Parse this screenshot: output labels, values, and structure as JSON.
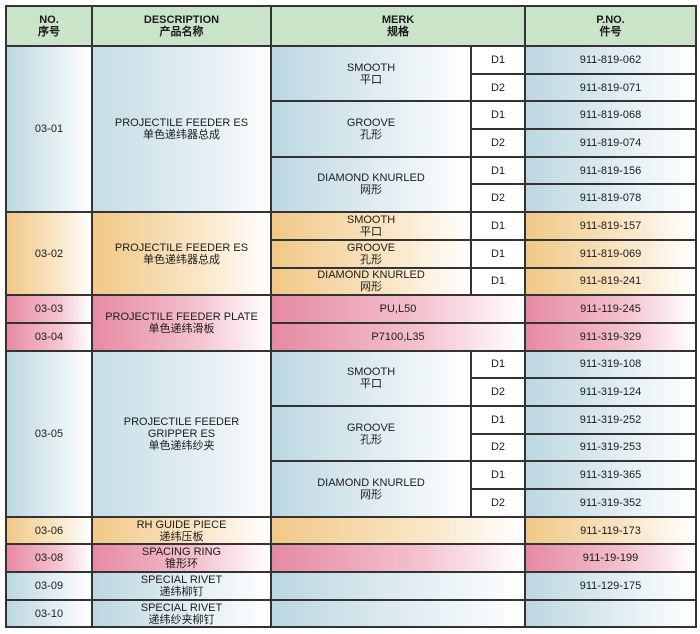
{
  "header": {
    "no": "NO.",
    "no_cn": "序号",
    "desc": "DESCRIPTION",
    "desc_cn": "产品名称",
    "merk": "MERK",
    "merk_cn": "规格",
    "pno": "P.NO.",
    "pno_cn": "件号"
  },
  "g1": {
    "no": "03-01",
    "desc": "PROJECTILE FEEDER ES",
    "desc_cn": "单色递纬器总成",
    "m": [
      {
        "en": "SMOOTH",
        "cn": "平口",
        "d": [
          "D1",
          "D2"
        ],
        "p": [
          "911-819-062",
          "911-819-071"
        ]
      },
      {
        "en": "GROOVE",
        "cn": "孔形",
        "d": [
          "D1",
          "D2"
        ],
        "p": [
          "911-819-068",
          "911-819-074"
        ]
      },
      {
        "en": "DIAMOND KNURLED",
        "cn": "网形",
        "d": [
          "D1",
          "D2"
        ],
        "p": [
          "911-819-156",
          "911-819-078"
        ]
      }
    ]
  },
  "g2": {
    "no": "03-02",
    "desc": "PROJECTILE FEEDER ES",
    "desc_cn": "单色递纬器总成",
    "m": [
      {
        "en": "SMOOTH",
        "cn": "平口",
        "d": "D1",
        "p": "911-819-157"
      },
      {
        "en": "GROOVE",
        "cn": "孔形",
        "d": "D1",
        "p": "911-819-069"
      },
      {
        "en": "DIAMOND KNURLED",
        "cn": "网形",
        "d": "D1",
        "p": "911-819-241"
      }
    ]
  },
  "g3": {
    "desc": "PROJECTILE FEEDER PLATE",
    "desc_cn": "单色递纬滑板",
    "r": [
      {
        "no": "03-03",
        "m": "PU,L50",
        "p": "911-119-245"
      },
      {
        "no": "03-04",
        "m": "P7100,L35",
        "p": "911-319-329"
      }
    ]
  },
  "g4": {
    "no": "03-05",
    "desc1": "PROJECTILE FEEDER",
    "desc2": "GRIPPER ES",
    "desc_cn": "单色递纬纱夹",
    "m": [
      {
        "en": "SMOOTH",
        "cn": "平口",
        "d": [
          "D1",
          "D2"
        ],
        "p": [
          "911-319-108",
          "911-319-124"
        ]
      },
      {
        "en": "GROOVE",
        "cn": "孔形",
        "d": [
          "D1",
          "D2"
        ],
        "p": [
          "911-319-252",
          "911-319-253"
        ]
      },
      {
        "en": "DIAMOND KNURLED",
        "cn": "网形",
        "d": [
          "D1",
          "D2"
        ],
        "p": [
          "911-319-365",
          "911-319-352"
        ]
      }
    ]
  },
  "s": [
    {
      "no": "03-06",
      "en": "RH GUIDE PIECE",
      "cn": "递纬压板",
      "p": "911-119-173",
      "color": "orange"
    },
    {
      "no": "03-08",
      "en": "SPACING RING",
      "cn": "锥形环",
      "p": "911-19-199",
      "color": "pink"
    },
    {
      "no": "03-09",
      "en": "SPECIAL RIVET",
      "cn": "递纬柳钉",
      "p": "911-129-175",
      "color": "blue"
    },
    {
      "no": "03-10",
      "en": "SPECIAL RIVET",
      "cn": "递纬纱夹柳钉",
      "p": "",
      "color": "blue"
    }
  ]
}
